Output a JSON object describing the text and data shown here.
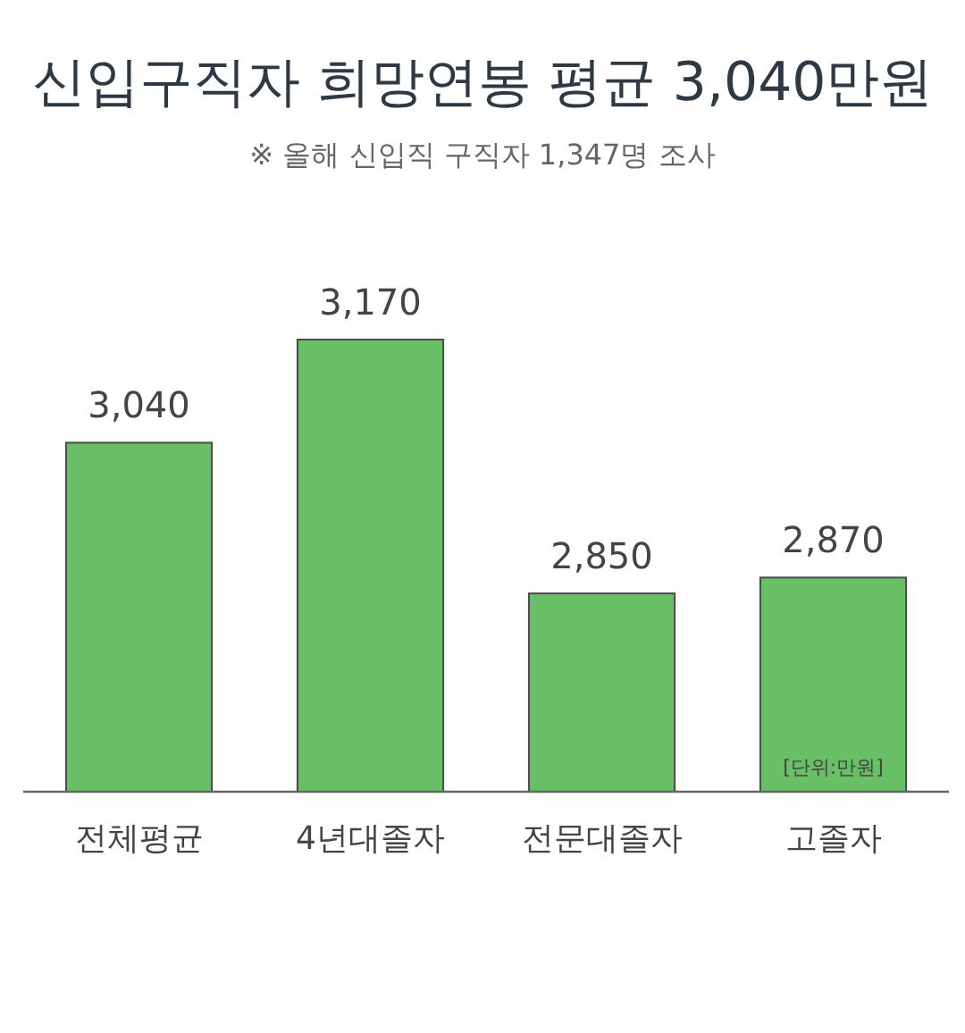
{
  "chart_data": {
    "type": "bar",
    "title": "신입구직자 희망연봉 평균 3,040만원",
    "subtitle": "※ 올해 신입직 구직자 1,347명 조사",
    "categories": [
      "전체평균",
      "4년대졸자",
      "전문대졸자",
      "고졸자"
    ],
    "values": [
      3040,
      3170,
      2850,
      2870
    ],
    "color": "#68bf65",
    "ylim": [
      2600,
      3170
    ],
    "data_labels": true,
    "value_labels": [
      "3,040",
      "3,170",
      "2,850",
      "2,870"
    ],
    "annotations": [
      "[단위:만원]"
    ]
  }
}
